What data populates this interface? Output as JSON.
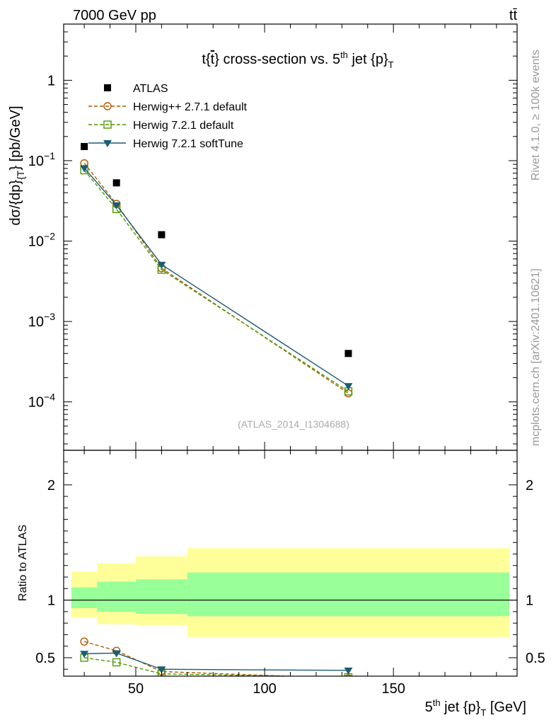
{
  "header": {
    "energy": "7000 GeV pp",
    "process_t": "t",
    "process_tbar": "t̄"
  },
  "side": {
    "rivet": "Rivet 4.1.0, ≥ 100k events",
    "mcplots": "mcplots.cern.ch [arXiv:2401.10621]"
  },
  "chart_data": [
    {
      "type": "scatter",
      "panel": "main",
      "title": "t{t̄} cross-section vs. 5th jet {p}T",
      "title_parts": {
        "pre": "t{",
        "tbar": "t",
        "mid": "} cross-section vs. 5",
        "sup": "th",
        "post": " jet {p}",
        "sub": "T"
      },
      "ylabel": "dσ/{dp}{T} [pb/GeV]",
      "ylabel_parts": {
        "a": "dσ/{dp}",
        "sub": "{T",
        "b": "} [pb/GeV]"
      },
      "yscale": "log",
      "xlim": [
        22,
        198
      ],
      "ylim": [
        2.5e-05,
        5
      ],
      "y_ticks": [
        {
          "value": 0.0001,
          "base": "10",
          "exp": "−4"
        },
        {
          "value": 0.001,
          "base": "10",
          "exp": "−3"
        },
        {
          "value": 0.01,
          "base": "10",
          "exp": "−2"
        },
        {
          "value": 0.1,
          "base": "10",
          "exp": "−1"
        },
        {
          "value": 1,
          "label": "1"
        }
      ],
      "watermark": "(ATLAS_2014_I1304688)",
      "legend_position": "top-left",
      "series": [
        {
          "name": "ATLAS",
          "kind": "data",
          "color": "#000000",
          "marker": "square",
          "x": [
            30,
            42.5,
            60,
            132.5
          ],
          "y": [
            0.15,
            0.053,
            0.012,
            0.0004
          ]
        },
        {
          "name": "Herwig++ 2.7.1 default",
          "kind": "mc",
          "color": "#b35900",
          "marker": "circle-open",
          "dash": "5,3",
          "x": [
            30,
            42.5,
            60,
            132.5
          ],
          "y": [
            0.093,
            0.029,
            0.0046,
            0.000128
          ]
        },
        {
          "name": "Herwig 7.2.1 default",
          "kind": "mc",
          "color": "#4d9900",
          "marker": "square-open",
          "dash": "5,3",
          "x": [
            30,
            42.5,
            60,
            132.5
          ],
          "y": [
            0.076,
            0.025,
            0.0044,
            0.000135
          ]
        },
        {
          "name": "Herwig 7.2.1 softTune",
          "kind": "mc",
          "color": "#1a5c73",
          "marker": "triangle-down",
          "x": [
            30,
            42.5,
            60,
            132.5
          ],
          "y": [
            0.081,
            0.028,
            0.0051,
            0.000158
          ]
        }
      ]
    },
    {
      "type": "line",
      "panel": "ratio",
      "ylabel": "Ratio to ATLAS",
      "xlabel": "5th jet {p}T [GeV]",
      "xlabel_parts": {
        "pre": "5",
        "sup": "th",
        "mid": " jet {p}",
        "sub": "T",
        "post": " [GeV]"
      },
      "xlim": [
        22,
        198
      ],
      "ylim": [
        0.34,
        2.3
      ],
      "x_ticks": [
        {
          "value": 50,
          "label": "50"
        },
        {
          "value": 100,
          "label": "100"
        },
        {
          "value": 150,
          "label": "150"
        }
      ],
      "y_ticks": [
        {
          "value": 0.5,
          "label": "0.5"
        },
        {
          "value": 1,
          "label": "1"
        },
        {
          "value": 2,
          "label": "2"
        }
      ],
      "bands": {
        "edges": [
          25,
          35,
          50,
          70,
          195
        ],
        "outer_lo": [
          0.85,
          0.79,
          0.78,
          0.68
        ],
        "outer_hi": [
          1.25,
          1.32,
          1.38,
          1.45
        ],
        "inner_lo": [
          0.93,
          0.9,
          0.88,
          0.86
        ],
        "inner_hi": [
          1.11,
          1.16,
          1.18,
          1.24
        ],
        "outer_color": "#ffff99",
        "inner_color": "#99ff99"
      },
      "series": [
        {
          "name": "Herwig++ 2.7.1 default",
          "color": "#b35900",
          "marker": "circle-open",
          "dash": "5,3",
          "x": [
            30,
            42.5,
            60,
            132.5
          ],
          "y": [
            0.64,
            0.56,
            0.38,
            0.32
          ]
        },
        {
          "name": "Herwig 7.2.1 default",
          "color": "#4d9900",
          "marker": "square-open",
          "dash": "5,3",
          "x": [
            30,
            42.5,
            60,
            132.5
          ],
          "y": [
            0.5,
            0.46,
            0.36,
            0.33
          ]
        },
        {
          "name": "Herwig 7.2.1 softTune",
          "color": "#1a5c73",
          "marker": "triangle-down",
          "x": [
            30,
            42.5,
            60,
            132.5
          ],
          "y": [
            0.535,
            0.54,
            0.4,
            0.39
          ]
        }
      ]
    }
  ]
}
